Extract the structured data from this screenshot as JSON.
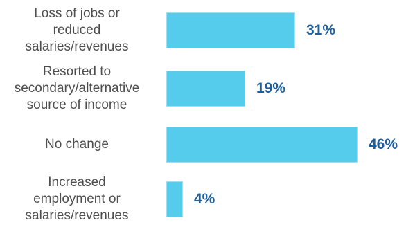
{
  "chart_data": {
    "type": "bar",
    "orientation": "horizontal",
    "categories": [
      "Loss of jobs or reduced salaries/revenues",
      "Resorted to secondary/alternative source of income",
      "No change",
      "Increased employment or salaries/revenues"
    ],
    "category_lines": [
      [
        "Loss of jobs or",
        "reduced",
        "salaries/revenues"
      ],
      [
        "Resorted to",
        "secondary/alternative",
        "source of income"
      ],
      [
        "No change"
      ],
      [
        "Increased",
        "employment or",
        "salaries/revenues"
      ]
    ],
    "values": [
      31,
      19,
      46,
      4
    ],
    "value_labels": [
      "31%",
      "19%",
      "46%",
      "4%"
    ],
    "xlim": [
      0,
      46
    ],
    "grid": false,
    "legend": "none",
    "colors": {
      "bar": "#56cced",
      "bar_border": "#9ae3f5",
      "value_text": "#1e5f9e",
      "label_text": "#4d4d4d"
    }
  }
}
